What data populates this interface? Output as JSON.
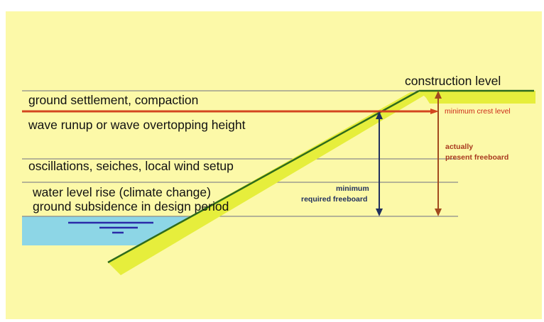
{
  "labels": {
    "construction_level": "construction level",
    "ground_settlement": "ground settlement, compaction",
    "wave_runup": "wave runup or wave overtopping height",
    "oscillations": "oscillations, seiches, local wind setup",
    "water_level_rise": "water level rise (climate change)",
    "ground_subsidence": "ground subsidence in design period",
    "minimum_crest_level": "minimum crest level",
    "actual_freeboard_line1": "actually",
    "actual_freeboard_line2": "present freeboard",
    "min_freeboard_line1": "minimum",
    "min_freeboard_line2": "required freeboard"
  },
  "colors": {
    "background": "#fcf9a8",
    "embankment": "#e6ee3c",
    "embankment_edge": "#2f6b1c",
    "water": "#8dd6e6",
    "water_symbol": "#2a2aa8",
    "crest_line": "#d3461f",
    "actual_arrow": "#a24a1e",
    "min_arrow": "#1f2f5e",
    "guide_line": "#8a8a8a"
  }
}
